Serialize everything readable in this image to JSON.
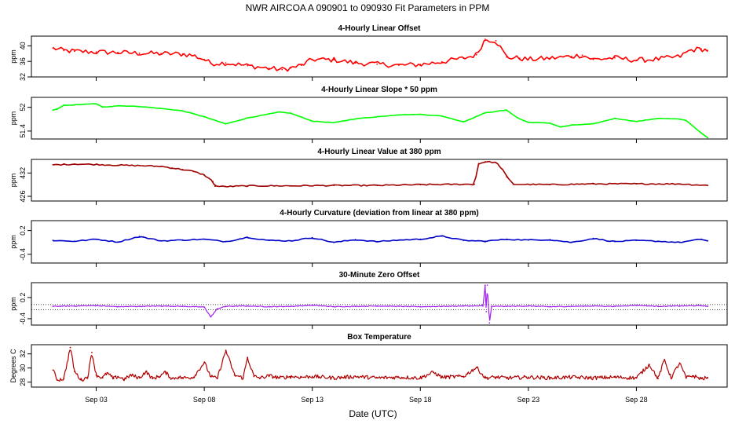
{
  "main_title": "NWR   AIRCOA A   090901 to 090930   Fit Parameters in PPM",
  "x_axis_label": "Date (UTC)",
  "chart_data": [
    {
      "type": "line",
      "title": "4-Hourly Linear Offset",
      "ylabel": "ppm",
      "color": "#ff0000",
      "yticks": [
        32,
        36,
        40
      ],
      "ylim": [
        32,
        42.5
      ],
      "x": [
        1.0,
        1.5,
        2.0,
        3.0,
        4.0,
        5.0,
        6.0,
        7.0,
        7.5,
        8.0,
        8.3,
        9.0,
        10.0,
        11.0,
        11.6,
        12.0,
        12.5,
        13.0,
        14.0,
        15.0,
        16.0,
        17.0,
        18.0,
        19.0,
        20.0,
        20.6,
        21.0,
        21.5,
        22.0,
        22.6,
        23.0,
        24.0,
        25.0,
        25.5,
        26.0,
        27.0,
        28.0,
        29.0,
        30.0,
        30.5,
        31.0,
        31.3
      ],
      "values": [
        39.4,
        38.8,
        38.6,
        38.4,
        38.3,
        38.1,
        38.0,
        37.9,
        37.5,
        36.5,
        35.5,
        35.6,
        34.9,
        34.2,
        33.9,
        34.3,
        35.0,
        36.5,
        36.4,
        35.6,
        35.3,
        35.0,
        35.2,
        35.9,
        36.8,
        37.7,
        41.7,
        41.3,
        37.1,
        36.8,
        36.5,
        36.8,
        37.3,
        37.6,
        36.5,
        36.9,
        36.3,
        36.6,
        37.2,
        38.9,
        39.2,
        38.8
      ]
    },
    {
      "type": "line",
      "title": "4-Hourly Linear Slope * 50 ppm",
      "ylabel": "ppm",
      "color": "#00ff00",
      "yticks": [
        51.4,
        52.0
      ],
      "ylim": [
        51.2,
        52.25
      ],
      "x": [
        1.0,
        1.2,
        1.5,
        2.0,
        3.0,
        3.3,
        4.0,
        5.0,
        6.0,
        7.0,
        8.0,
        9.0,
        10.0,
        11.0,
        11.5,
        12.0,
        13.0,
        14.0,
        15.0,
        16.0,
        17.0,
        18.0,
        19.0,
        20.0,
        21.0,
        22.0,
        22.5,
        23.0,
        24.0,
        24.5,
        25.0,
        26.0,
        27.0,
        28.0,
        29.0,
        30.0,
        30.3,
        31.0,
        31.3
      ],
      "values": [
        51.93,
        51.95,
        52.05,
        52.06,
        52.09,
        52.0,
        52.04,
        52.02,
        51.97,
        51.91,
        51.76,
        51.58,
        51.73,
        51.83,
        51.88,
        51.85,
        51.65,
        51.61,
        51.71,
        51.76,
        51.81,
        51.82,
        51.78,
        51.63,
        51.86,
        51.93,
        51.73,
        51.62,
        51.6,
        51.5,
        51.55,
        51.58,
        51.72,
        51.64,
        51.72,
        51.7,
        51.67,
        51.35,
        51.23
      ]
    },
    {
      "type": "line",
      "title": "4-Hourly Linear Value at 380 ppm",
      "ylabel": "ppm",
      "color": "#a00000",
      "yticks": [
        426,
        432
      ],
      "ylim": [
        424.8,
        435.5
      ],
      "x": [
        1.0,
        1.5,
        2.0,
        3.0,
        4.0,
        5.0,
        6.0,
        6.5,
        7.0,
        7.5,
        8.0,
        8.4,
        8.5,
        9.0,
        10.0,
        12.0,
        14.0,
        16.0,
        18.0,
        20.0,
        20.5,
        20.7,
        21.0,
        21.5,
        21.8,
        22.0,
        22.3,
        24.0,
        26.0,
        28.0,
        30.0,
        31.3
      ],
      "values": [
        434.1,
        434.2,
        434.3,
        434.2,
        434.0,
        433.9,
        433.7,
        433.3,
        432.9,
        432.4,
        431.5,
        429.8,
        428.6,
        428.5,
        428.7,
        428.7,
        428.8,
        428.8,
        429.0,
        429.1,
        429.1,
        434.4,
        434.9,
        434.7,
        433.0,
        431.0,
        429.1,
        429.0,
        429.2,
        429.2,
        429.2,
        428.8
      ]
    },
    {
      "type": "line",
      "title": "4-Hourly Curvature (deviation from linear at 380 ppm)",
      "ylabel": "ppm",
      "color": "#0000c8",
      "yticks": [
        -0.4,
        0.2
      ],
      "ylim": [
        -0.62,
        0.45
      ],
      "x": [
        1.0,
        2.0,
        3.0,
        4.0,
        5.0,
        6.0,
        7.0,
        8.0,
        9.0,
        10.0,
        11.0,
        12.0,
        13.0,
        14.0,
        15.0,
        16.0,
        17.0,
        18.0,
        19.0,
        20.0,
        21.0,
        22.0,
        23.0,
        24.0,
        25.0,
        26.0,
        27.0,
        28.0,
        29.0,
        30.0,
        31.0,
        31.3
      ],
      "values": [
        -0.05,
        -0.07,
        -0.02,
        -0.09,
        0.05,
        -0.06,
        -0.04,
        -0.02,
        -0.08,
        0.03,
        -0.05,
        -0.06,
        0.02,
        -0.1,
        -0.03,
        -0.08,
        -0.04,
        -0.02,
        0.06,
        -0.05,
        -0.07,
        -0.02,
        -0.04,
        -0.03,
        -0.1,
        0.0,
        -0.08,
        -0.05,
        -0.07,
        -0.1,
        -0.02,
        -0.06
      ]
    },
    {
      "type": "line",
      "title": "30-Minute Zero Offset",
      "ylabel": "ppm",
      "color": "#a020f0",
      "yticks": [
        -0.4,
        0.2
      ],
      "ylim": [
        -0.58,
        0.62
      ],
      "reference_lines": [
        0.0,
        -0.15
      ],
      "x": [
        1.0,
        2.0,
        3.0,
        4.0,
        5.0,
        6.0,
        7.0,
        8.0,
        8.3,
        8.6,
        9.0,
        10.0,
        11.0,
        12.0,
        13.0,
        14.0,
        15.0,
        16.0,
        17.0,
        18.0,
        19.0,
        20.0,
        20.9,
        21.0,
        21.05,
        21.1,
        21.2,
        21.3,
        22.0,
        23.0,
        24.0,
        25.0,
        26.0,
        27.0,
        28.0,
        29.0,
        30.0,
        31.0,
        31.3
      ],
      "values": [
        -0.05,
        -0.04,
        -0.03,
        -0.06,
        -0.05,
        -0.04,
        -0.05,
        -0.07,
        -0.35,
        -0.12,
        -0.05,
        -0.04,
        -0.06,
        -0.05,
        -0.02,
        -0.06,
        -0.05,
        -0.04,
        -0.05,
        -0.06,
        -0.05,
        -0.04,
        -0.04,
        0.55,
        -0.2,
        0.55,
        -0.52,
        -0.05,
        -0.05,
        -0.04,
        -0.06,
        -0.05,
        -0.04,
        -0.05,
        -0.02,
        -0.05,
        -0.04,
        -0.03,
        -0.05
      ]
    },
    {
      "type": "line",
      "title": "Box Temperature",
      "ylabel": "Degrees C",
      "color": "#b00000",
      "yticks": [
        28,
        30,
        32
      ],
      "ylim": [
        27.3,
        33.3
      ],
      "x": [
        1.0,
        1.2,
        1.5,
        1.8,
        2.0,
        2.3,
        2.6,
        2.8,
        3.0,
        3.3,
        3.5,
        3.8,
        4.0,
        4.3,
        4.6,
        5.0,
        5.3,
        5.6,
        5.9,
        6.2,
        6.5,
        6.8,
        7.0,
        7.5,
        8.0,
        8.3,
        8.6,
        9.0,
        9.4,
        9.8,
        10.0,
        10.3,
        10.6,
        11.0,
        11.5,
        12.0,
        12.5,
        13.0,
        14.0,
        15.0,
        16.0,
        17.0,
        18.0,
        18.6,
        19.0,
        20.0,
        20.6,
        21.0,
        21.5,
        22.0,
        23.0,
        24.0,
        25.0,
        26.0,
        27.0,
        28.0,
        28.6,
        29.0,
        29.3,
        29.6,
        30.0,
        30.3,
        30.6,
        31.0,
        31.3
      ],
      "values": [
        29.7,
        28.3,
        28.5,
        32.9,
        29.5,
        28.3,
        28.7,
        32.2,
        29.0,
        28.6,
        29.3,
        28.5,
        28.8,
        28.4,
        29.0,
        28.6,
        29.5,
        28.5,
        28.8,
        29.4,
        28.5,
        28.7,
        28.6,
        28.7,
        30.8,
        28.8,
        28.5,
        32.5,
        29.0,
        28.6,
        31.5,
        28.8,
        28.6,
        28.9,
        28.6,
        28.8,
        28.7,
        28.8,
        28.6,
        28.8,
        28.6,
        28.7,
        28.6,
        29.4,
        28.7,
        28.8,
        30.1,
        28.6,
        28.7,
        28.6,
        28.7,
        28.6,
        28.7,
        28.6,
        28.7,
        28.6,
        30.5,
        28.5,
        31.2,
        28.6,
        30.7,
        28.6,
        28.9,
        28.5,
        28.6
      ]
    }
  ],
  "x_axis": {
    "xlim": [
      0.0,
      32.2
    ],
    "ticks": [
      3,
      8,
      13,
      18,
      23,
      28
    ],
    "tick_labels": [
      "Sep 03",
      "Sep 08",
      "Sep 13",
      "Sep 18",
      "Sep 23",
      "Sep 28"
    ]
  }
}
